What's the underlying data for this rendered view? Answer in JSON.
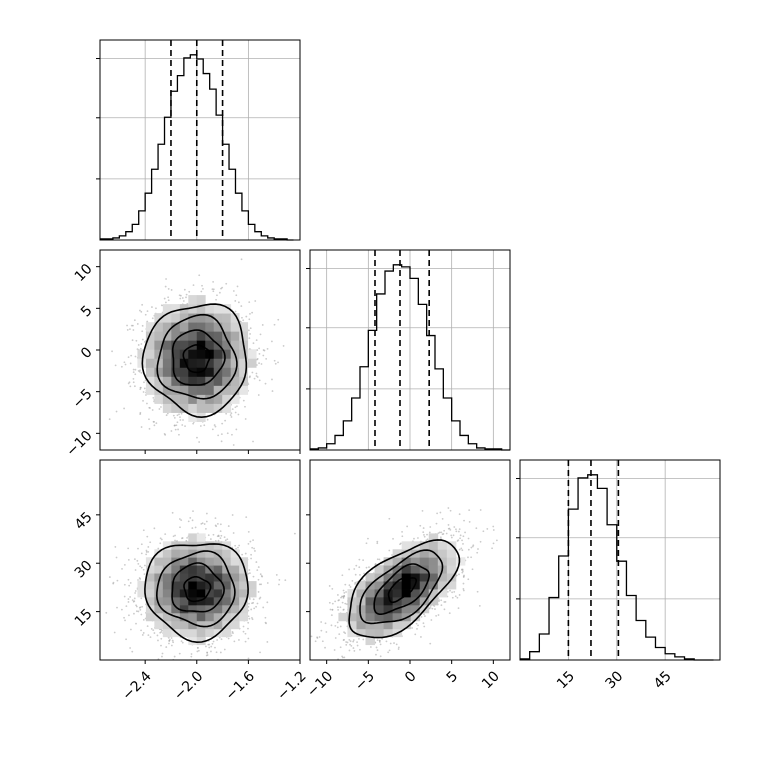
{
  "chart_data": {
    "type": "corner",
    "grid": true,
    "parameters": [
      {
        "range": [
          -2.75,
          -1.2
        ],
        "ticks": [
          -2.4,
          -2.0,
          -1.6,
          -1.2
        ],
        "tick_labels": [
          "−2.4",
          "−2.0",
          "−1.6",
          "−1.2"
        ],
        "quantiles": [
          -2.2,
          -2.0,
          -1.8
        ],
        "mean": -2.0,
        "sd": 0.2
      },
      {
        "range": [
          -12,
          12
        ],
        "ticks": [
          -10,
          -5,
          0,
          5,
          10
        ],
        "tick_labels": [
          "−10",
          "−5",
          "0",
          "5",
          "10"
        ],
        "quantiles": [
          -4.2,
          -1.2,
          2.3
        ],
        "mean": -1.0,
        "sd": 3.3
      },
      {
        "range": [
          0,
          62
        ],
        "ticks": [
          15,
          30,
          45
        ],
        "tick_labels": [
          "15",
          "30",
          "45"
        ],
        "quantiles": [
          15.0,
          22.0,
          30.5
        ],
        "mean": 22.0,
        "sd": 7.5
      }
    ],
    "histograms": [
      {
        "param": 0,
        "bin_edges": [
          -2.75,
          -2.7,
          -2.65,
          -2.6,
          -2.55,
          -2.5,
          -2.45,
          -2.4,
          -2.35,
          -2.3,
          -2.25,
          -2.2,
          -2.15,
          -2.1,
          -2.05,
          -2.0,
          -1.95,
          -1.9,
          -1.85,
          -1.8,
          -1.75,
          -1.7,
          -1.65,
          -1.6,
          -1.55,
          -1.5,
          -1.45,
          -1.4,
          -1.35,
          -1.3,
          -1.25
        ],
        "counts": [
          1,
          1,
          2,
          4,
          8,
          15,
          28,
          45,
          68,
          92,
          118,
          143,
          158,
          175,
          178,
          174,
          160,
          145,
          120,
          92,
          68,
          45,
          28,
          15,
          8,
          4,
          2,
          1,
          1,
          0
        ]
      },
      {
        "param": 1,
        "bin_edges": [
          -12,
          -11,
          -10,
          -9,
          -8,
          -7,
          -6,
          -5,
          -4,
          -3,
          -2,
          -1,
          0,
          1,
          2,
          3,
          4,
          5,
          6,
          7,
          8,
          9,
          10,
          11,
          12
        ],
        "counts": [
          1,
          2,
          6,
          14,
          28,
          50,
          80,
          115,
          150,
          172,
          178,
          176,
          165,
          140,
          110,
          78,
          50,
          28,
          14,
          6,
          2,
          1,
          1,
          0
        ]
      },
      {
        "param": 2,
        "bin_edges": [
          0,
          3,
          6,
          9,
          12,
          15,
          18,
          21,
          24,
          27,
          30,
          33,
          36,
          39,
          42,
          45,
          48,
          51,
          54,
          57,
          60
        ],
        "counts": [
          1,
          8,
          25,
          60,
          100,
          145,
          175,
          178,
          165,
          130,
          95,
          62,
          38,
          22,
          12,
          6,
          3,
          1,
          0,
          0
        ]
      }
    ],
    "contour_panels": [
      {
        "x_param": 0,
        "y_param": 1,
        "rho": 0.0
      },
      {
        "x_param": 0,
        "y_param": 2,
        "rho": 0.0
      },
      {
        "x_param": 1,
        "y_param": 2,
        "rho": 0.6
      }
    ],
    "contour_levels_sigma": [
      0.5,
      1.0,
      1.5,
      2.0
    ]
  },
  "colors": {
    "line": "#000000",
    "grid": "#b0b0b0",
    "points": "#a0a0a0",
    "density_light": "#f0f0f0",
    "density_dark": "#000000"
  }
}
